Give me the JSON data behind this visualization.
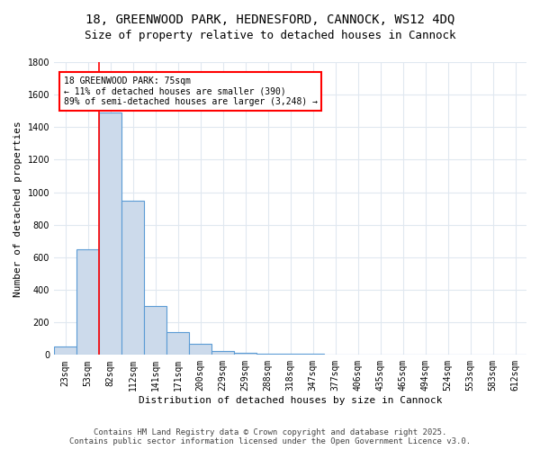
{
  "title_line1": "18, GREENWOOD PARK, HEDNESFORD, CANNOCK, WS12 4DQ",
  "title_line2": "Size of property relative to detached houses in Cannock",
  "xlabel": "Distribution of detached houses by size in Cannock",
  "ylabel": "Number of detached properties",
  "bins": [
    "23sqm",
    "53sqm",
    "82sqm",
    "112sqm",
    "141sqm",
    "171sqm",
    "200sqm",
    "229sqm",
    "259sqm",
    "288sqm",
    "318sqm",
    "347sqm",
    "377sqm",
    "406sqm",
    "435sqm",
    "465sqm",
    "494sqm",
    "524sqm",
    "553sqm",
    "583sqm",
    "612sqm"
  ],
  "bar_heights": [
    50,
    650,
    1490,
    950,
    300,
    140,
    70,
    25,
    15,
    10,
    5,
    5,
    0,
    0,
    0,
    0,
    0,
    0,
    0,
    0,
    0
  ],
  "bar_color": "#ccdaeb",
  "bar_edge_color": "#5b9bd5",
  "annotation_text": "18 GREENWOOD PARK: 75sqm\n← 11% of detached houses are smaller (390)\n89% of semi-detached houses are larger (3,248) →",
  "annotation_box_color": "white",
  "annotation_box_edge": "red",
  "ylim": [
    0,
    1800
  ],
  "yticks": [
    0,
    200,
    400,
    600,
    800,
    1000,
    1200,
    1400,
    1600,
    1800
  ],
  "footer_line1": "Contains HM Land Registry data © Crown copyright and database right 2025.",
  "footer_line2": "Contains public sector information licensed under the Open Government Licence v3.0.",
  "bg_color": "#ffffff",
  "plot_bg_color": "#ffffff",
  "grid_color": "#e0e8f0",
  "title_fontsize": 10,
  "subtitle_fontsize": 9,
  "label_fontsize": 8,
  "tick_fontsize": 7,
  "footer_fontsize": 6.5,
  "red_line_x": 1.5
}
